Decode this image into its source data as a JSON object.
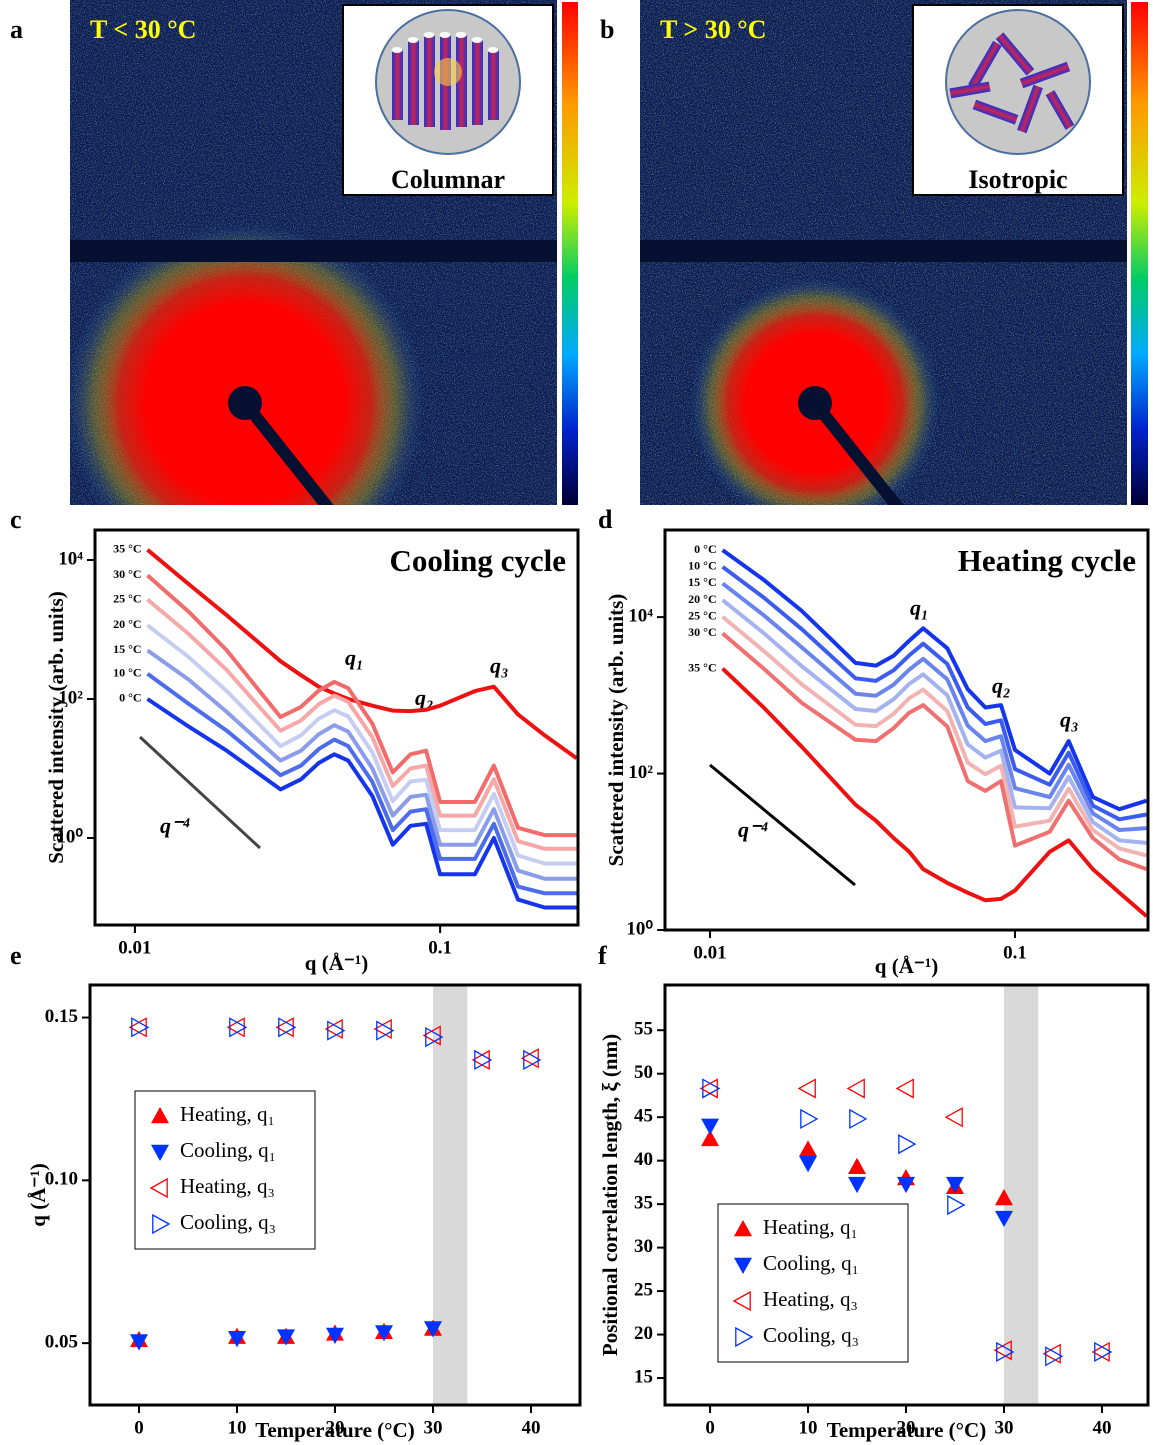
{
  "panel_a": {
    "label": "a",
    "title": "T < 30 °C",
    "inset_label": "Columnar"
  },
  "panel_b": {
    "label": "b",
    "title": "T > 30 °C",
    "inset_label": "Isotropic"
  },
  "chart_data": [
    {
      "type": "line",
      "label": "c",
      "title": "Cooling cycle",
      "x_label": "q (Å⁻¹)",
      "y_label": "Scattered intensity (arb. units)",
      "x_log": true,
      "y_log": true,
      "annotations": [
        "q₁",
        "q₂",
        "q₃",
        "q⁻⁴"
      ],
      "x": [
        0.011,
        0.015,
        0.02,
        0.03,
        0.035,
        0.04,
        0.045,
        0.05,
        0.06,
        0.07,
        0.08,
        0.09,
        0.1,
        0.13,
        0.15,
        0.18,
        0.22,
        0.28
      ],
      "xlim": [
        0.0074,
        0.283
      ],
      "xticks": [
        0.01,
        0.1
      ],
      "ylim": [
        0.056,
        27000
      ],
      "yticks": [
        {
          "value": 1,
          "label": "10⁰"
        },
        {
          "value": 100,
          "label": "10²"
        },
        {
          "value": 10000,
          "label": "10⁴"
        }
      ],
      "series": [
        {
          "name": "35 °C",
          "color": "#ee1111",
          "values": [
            14000,
            4500,
            1600,
            350,
            220,
            150,
            120,
            100,
            80,
            68,
            67,
            70,
            80,
            130,
            150,
            60,
            30,
            14
          ]
        },
        {
          "name": "30 °C",
          "color": "#f26a6a",
          "values": [
            6000,
            1800,
            500,
            55,
            77,
            132,
            176,
            143,
            44,
            8.8,
            16,
            18,
            3.3,
            3.3,
            11,
            1.4,
            1.1,
            1.1
          ]
        },
        {
          "name": "25 °C",
          "color": "#f6a8a8",
          "values": [
            2700,
            860,
            260,
            35,
            49,
            84,
            112,
            91,
            28,
            5.6,
            10,
            11,
            2.1,
            2.1,
            7,
            0.9,
            0.7,
            0.7
          ]
        },
        {
          "name": "20 °C",
          "color": "#c6cdf2",
          "values": [
            1150,
            400,
            130,
            21,
            30,
            52,
            69,
            56,
            17,
            3.4,
            6.5,
            6.9,
            1.3,
            1.3,
            4.3,
            0.56,
            0.43,
            0.43
          ]
        },
        {
          "name": "15 °C",
          "color": "#8a9cea",
          "values": [
            500,
            190,
            65,
            13,
            18,
            31,
            42,
            34,
            10,
            2.1,
            3.9,
            4.2,
            0.8,
            0.8,
            2.6,
            0.34,
            0.26,
            0.26
          ]
        },
        {
          "name": "10 °C",
          "color": "#4c6cec",
          "values": [
            230,
            85,
            35,
            8,
            11,
            19,
            26,
            21,
            6.4,
            1.3,
            2.4,
            2.6,
            0.5,
            0.5,
            1.6,
            0.2,
            0.16,
            0.16
          ]
        },
        {
          "name": "0 °C",
          "color": "#1434ee",
          "values": [
            100,
            40,
            18,
            5,
            7,
            12,
            16,
            13,
            4,
            0.8,
            1.5,
            1.6,
            0.3,
            0.3,
            1,
            0.13,
            0.1,
            0.1
          ]
        }
      ]
    },
    {
      "type": "line",
      "label": "d",
      "title": "Heating cycle",
      "x_label": "q (Å⁻¹)",
      "y_label": "Scattered intensity (arb. units)",
      "x_log": true,
      "y_log": true,
      "annotations": [
        "q₁",
        "q₂",
        "q₃",
        "q⁻⁴"
      ],
      "x": [
        0.011,
        0.015,
        0.02,
        0.03,
        0.035,
        0.04,
        0.045,
        0.05,
        0.06,
        0.07,
        0.08,
        0.09,
        0.1,
        0.13,
        0.15,
        0.18,
        0.22,
        0.27
      ],
      "xlim": [
        0.00712,
        0.273
      ],
      "xticks": [
        0.01,
        0.1
      ],
      "ylim": [
        1,
        130000
      ],
      "yticks": [
        {
          "value": 1,
          "label": "10⁰"
        },
        {
          "value": 100,
          "label": "10²"
        },
        {
          "value": 10000,
          "label": "10⁴"
        }
      ],
      "series": [
        {
          "name": "0 °C",
          "color": "#1434ee",
          "values": [
            72000,
            30000,
            12000,
            2600,
            2400,
            3200,
            5000,
            7200,
            4000,
            1200,
            700,
            750,
            200,
            100,
            260,
            50,
            35,
            45
          ]
        },
        {
          "name": "10 °C",
          "color": "#3b5cee",
          "values": [
            44000,
            17800,
            7000,
            1650,
            1530,
            2090,
            3240,
            4580,
            2520,
            700,
            430,
            480,
            114,
            72,
            185,
            39,
            26,
            30
          ]
        },
        {
          "name": "15 °C",
          "color": "#6a84ee",
          "values": [
            27000,
            10600,
            4100,
            1050,
            990,
            1370,
            2130,
            2930,
            1600,
            410,
            260,
            300,
            65,
            50,
            130,
            31,
            19,
            20
          ]
        },
        {
          "name": "20 °C",
          "color": "#a4b2f0",
          "values": [
            16500,
            6250,
            2360,
            670,
            630,
            890,
            1400,
            1850,
            1000,
            236,
            160,
            196,
            37,
            36,
            91,
            24,
            14,
            13
          ]
        },
        {
          "name": "25 °C",
          "color": "#f2b3b3",
          "values": [
            10100,
            3700,
            1380,
            420,
            405,
            580,
            920,
            1180,
            630,
            138,
            98,
            126,
            21,
            25,
            64,
            19,
            11,
            9
          ]
        },
        {
          "name": "30 °C",
          "color": "#f07070",
          "values": [
            6200,
            2200,
            800,
            270,
            260,
            380,
            600,
            750,
            400,
            80,
            60,
            80,
            12,
            18,
            45,
            15,
            8,
            6
          ]
        },
        {
          "name": "35 °C",
          "color": "#ee1111",
          "values": [
            2200,
            700,
            220,
            40,
            25,
            15,
            10,
            6,
            4,
            3,
            2.4,
            2.5,
            3.2,
            10,
            14,
            6,
            3,
            1.5
          ]
        }
      ]
    },
    {
      "type": "scatter",
      "label": "e",
      "x_label": "Temperature (°C)",
      "y_label": "q (Å⁻¹)",
      "legend": "center-left",
      "xlim": [
        -5,
        45
      ],
      "xticks": [
        0,
        10,
        20,
        30,
        40
      ],
      "ylim": [
        0.031,
        0.16
      ],
      "yticks": [
        0.05,
        {
          "value": 0.1,
          "label": "0.10"
        },
        0.15
      ],
      "shaded_x": [
        30,
        33.5
      ],
      "series": [
        {
          "name": "Heating, q₁",
          "color": "#ff0000",
          "marker": "up",
          "filled": true,
          "x": [
            0,
            10,
            15,
            20,
            25,
            30
          ],
          "values": [
            0.051,
            0.052,
            0.052,
            0.053,
            0.0535,
            0.0545
          ]
        },
        {
          "name": "Cooling, q₁",
          "color": "#0033ff",
          "marker": "down",
          "filled": true,
          "x": [
            0,
            10,
            15,
            20,
            25,
            30
          ],
          "values": [
            0.0505,
            0.0515,
            0.052,
            0.0525,
            0.0533,
            0.0545
          ]
        },
        {
          "name": "Heating, q₃",
          "color": "#ff0000",
          "marker": "left",
          "filled": false,
          "x": [
            0,
            10,
            15,
            20,
            25,
            30,
            35,
            40
          ],
          "values": [
            0.147,
            0.147,
            0.147,
            0.1465,
            0.1465,
            0.1445,
            0.137,
            0.1375
          ]
        },
        {
          "name": "Cooling, q₃",
          "color": "#0033ff",
          "marker": "right",
          "filled": false,
          "x": [
            0,
            10,
            15,
            20,
            25,
            30,
            35,
            40
          ],
          "values": [
            0.147,
            0.147,
            0.147,
            0.146,
            0.146,
            0.144,
            0.137,
            0.137
          ]
        }
      ]
    },
    {
      "type": "scatter",
      "label": "f",
      "x_label": "Temperature (°C)",
      "y_label": "Positional correlation length, ξ (nm)",
      "legend": "lower-left",
      "xlim": [
        -4.6,
        44.7
      ],
      "xticks": [
        0,
        10,
        20,
        30,
        40
      ],
      "ylim": [
        11.9,
        60.2
      ],
      "yticks": [
        15,
        20,
        25,
        30,
        35,
        40,
        45,
        50,
        55
      ],
      "shaded_x": [
        30,
        33.5
      ],
      "series": [
        {
          "name": "Heating, q₁",
          "color": "#ff0000",
          "marker": "up",
          "filled": true,
          "x": [
            0,
            10,
            15,
            20,
            25,
            30
          ],
          "values": [
            42.5,
            41.3,
            39.3,
            38,
            37,
            35.7
          ]
        },
        {
          "name": "Cooling, q₁",
          "color": "#0033ff",
          "marker": "down",
          "filled": true,
          "x": [
            0,
            10,
            15,
            20,
            25,
            30
          ],
          "values": [
            44,
            39.7,
            37.3,
            37.3,
            37.3,
            33.4
          ]
        },
        {
          "name": "Heating, q₃",
          "color": "#ff0000",
          "marker": "left",
          "filled": false,
          "x": [
            0,
            10,
            15,
            20,
            25,
            30,
            35,
            40
          ],
          "values": [
            48.3,
            48.3,
            48.3,
            48.3,
            45,
            18.2,
            17.8,
            18
          ]
        },
        {
          "name": "Cooling, q₃",
          "color": "#0033ff",
          "marker": "right",
          "filled": false,
          "x": [
            0,
            10,
            15,
            20,
            25,
            30,
            35,
            40
          ],
          "values": [
            48.3,
            44.8,
            44.8,
            41.9,
            34.9,
            18,
            17.5,
            18
          ]
        }
      ]
    }
  ]
}
